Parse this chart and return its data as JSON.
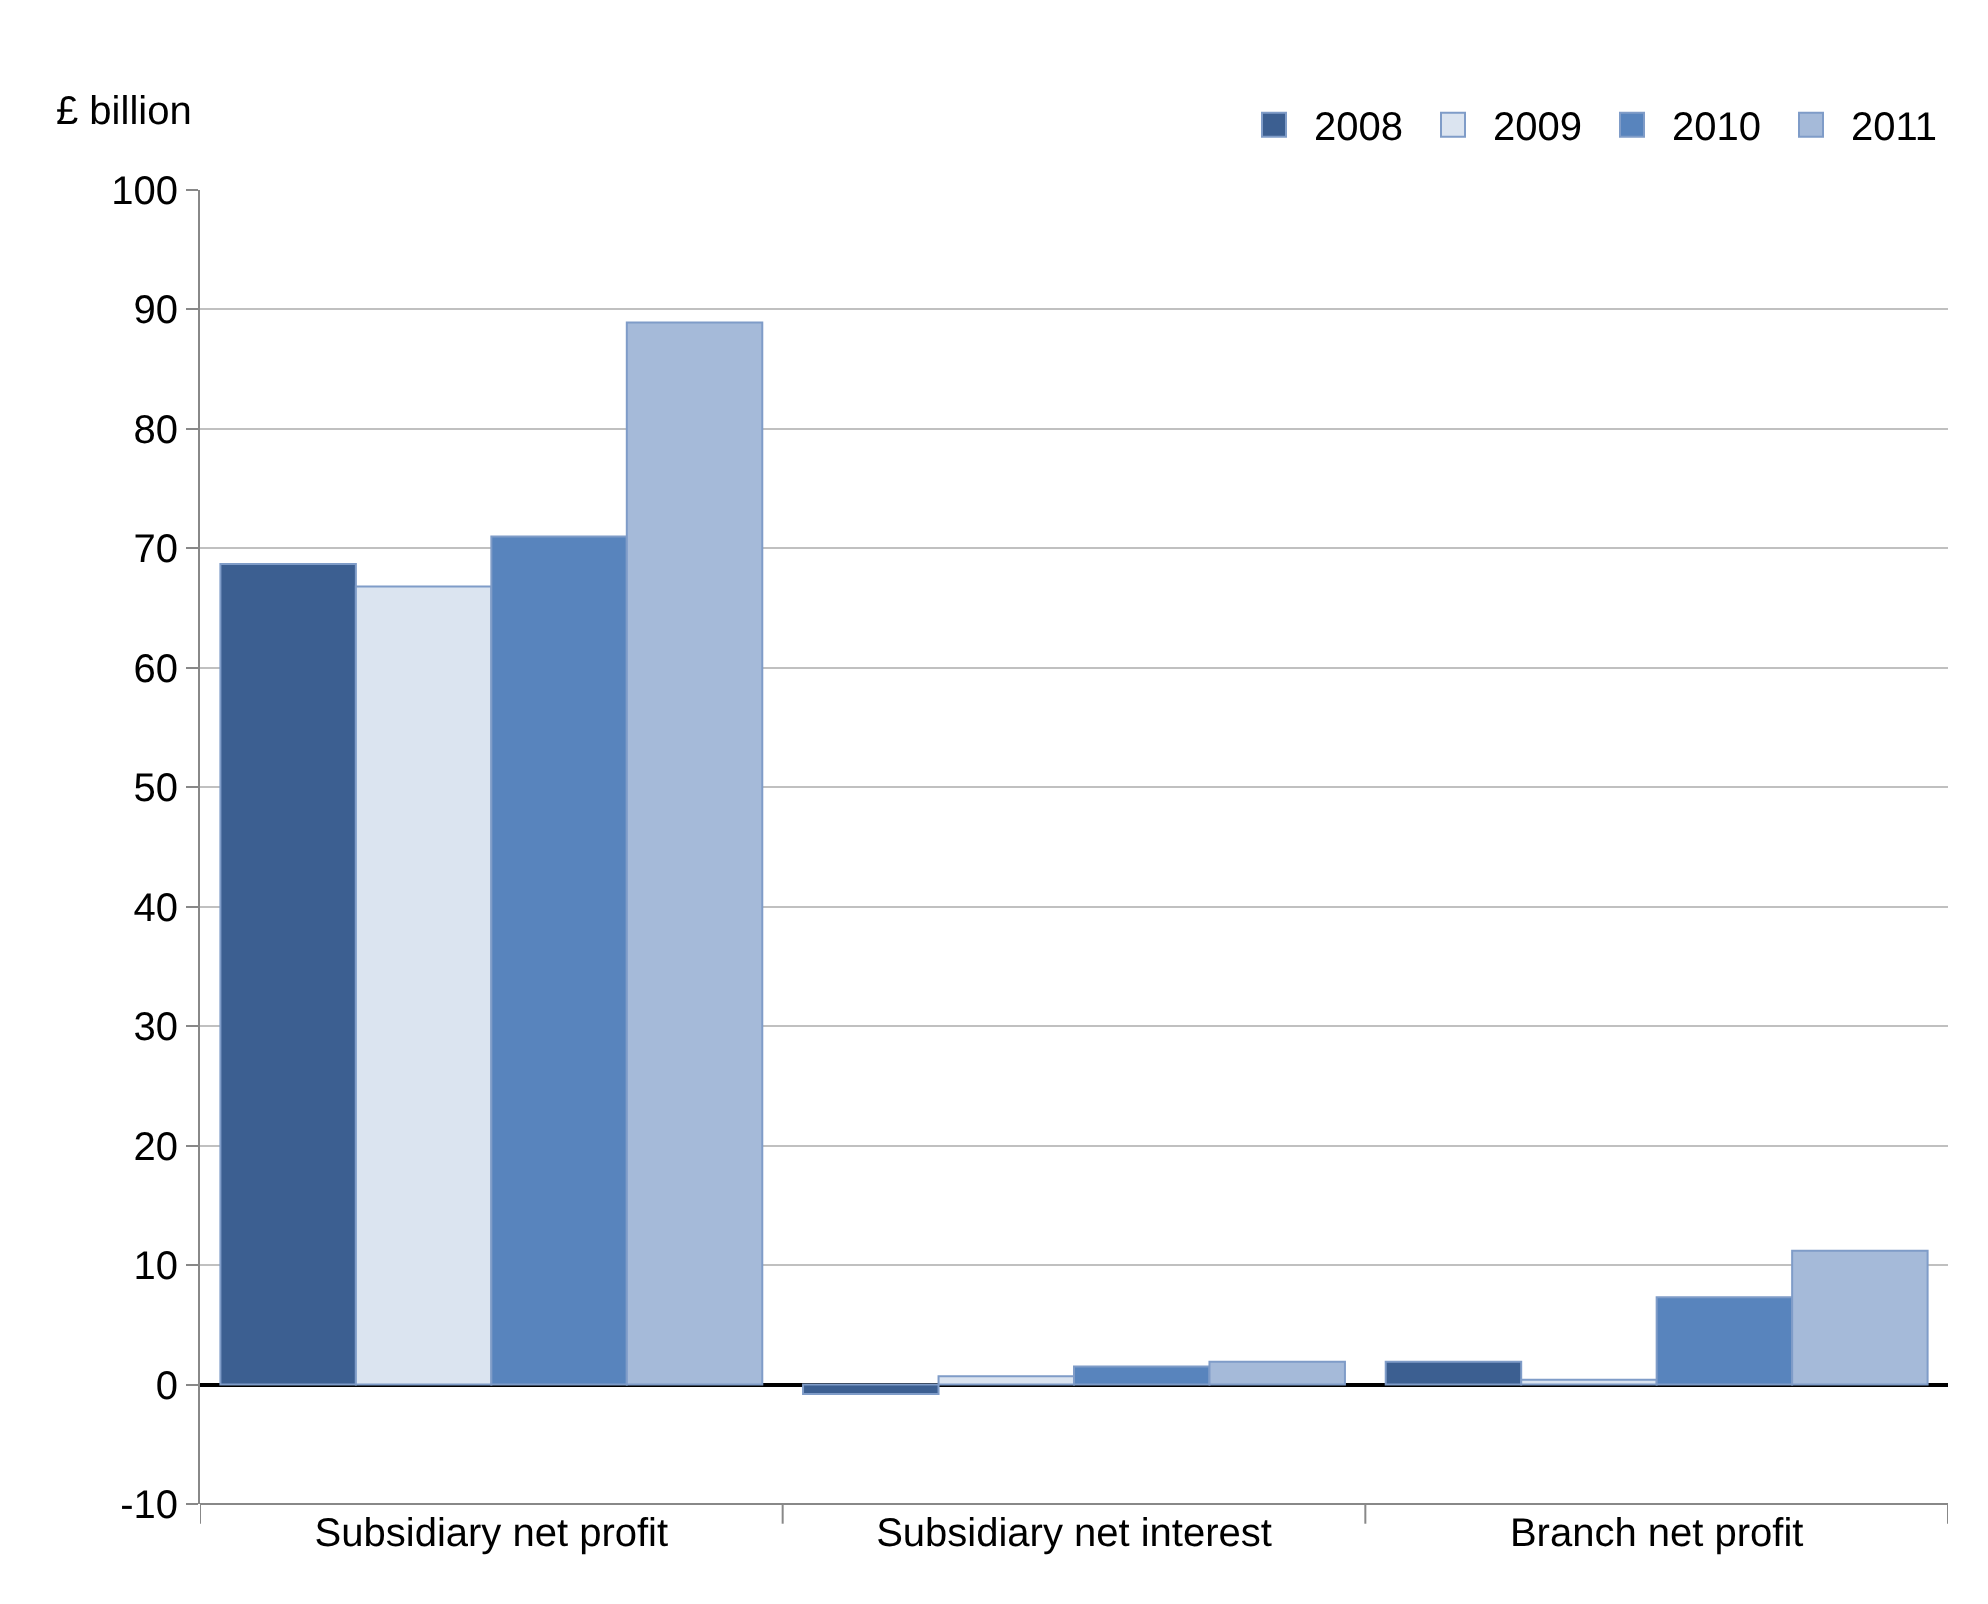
{
  "chart_data": {
    "type": "bar",
    "ylabel": "£ billion",
    "categories": [
      "Subsidiary net profit",
      "Subsidiary net interest",
      "Branch net profit"
    ],
    "series": [
      {
        "name": "2008",
        "color": "#3c5f91",
        "values": [
          68.7,
          -0.8,
          1.9
        ]
      },
      {
        "name": "2009",
        "color": "#dbe4f0",
        "values": [
          66.8,
          0.7,
          0.4
        ]
      },
      {
        "name": "2010",
        "color": "#5884bd",
        "values": [
          71.0,
          1.5,
          7.3
        ]
      },
      {
        "name": "2011",
        "color": "#a5bad9",
        "values": [
          88.9,
          1.9,
          11.2
        ]
      }
    ],
    "ylim": [
      -10,
      100
    ],
    "yticks": [
      -10,
      0,
      10,
      20,
      30,
      40,
      50,
      60,
      70,
      80,
      90,
      100
    ],
    "grid": "y",
    "legend": "top right"
  }
}
